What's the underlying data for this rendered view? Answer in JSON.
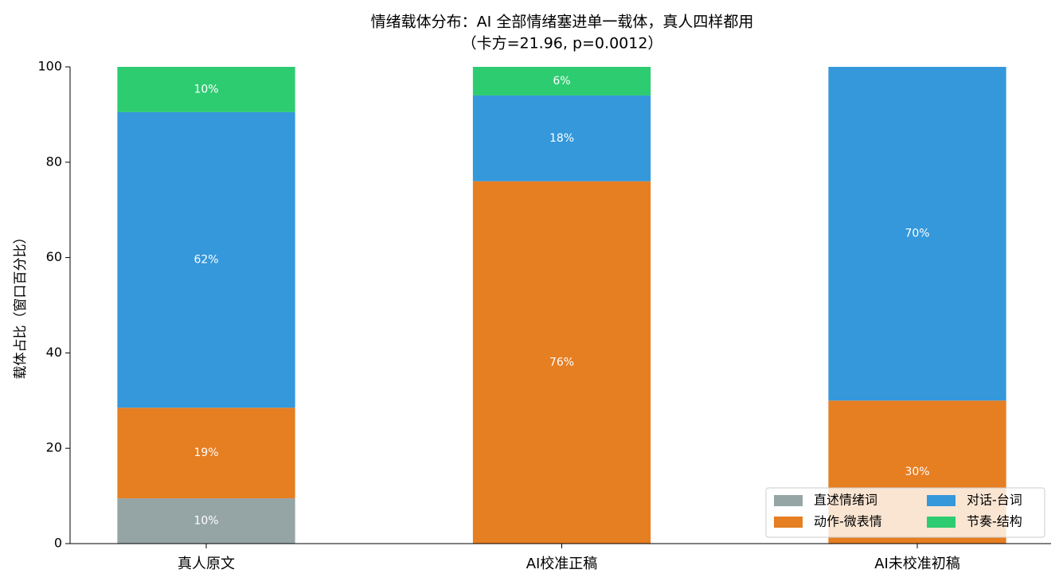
{
  "chart_data": {
    "type": "stacked_bar",
    "title": "情绪载体分布：AI 全部情绪塞进单一载体，真人四样都用",
    "subtitle": "（卡方=21.96, p=0.0012）",
    "y_label": "载体占比（窗口百分比）",
    "categories": [
      "真人原文",
      "AI校准正稿",
      "AI未校准初稿"
    ],
    "series": [
      {
        "name": "直述情绪词",
        "color": "#95a5a6",
        "values": [
          9.5,
          0,
          0
        ],
        "value_labels": [
          "10%",
          null,
          null
        ]
      },
      {
        "name": "动作-微表情",
        "color": "#e67e22",
        "values": [
          19,
          76,
          30
        ],
        "value_labels": [
          "19%",
          "76%",
          "30%"
        ]
      },
      {
        "name": "对话-台词",
        "color": "#3498db",
        "values": [
          62,
          18,
          70
        ],
        "value_labels": [
          "62%",
          "18%",
          "70%"
        ]
      },
      {
        "name": "节奏-结构",
        "color": "#2ecc71",
        "values": [
          9.5,
          6,
          0
        ],
        "value_labels": [
          "10%",
          "6%",
          null
        ]
      }
    ],
    "ylim": [
      0,
      100
    ],
    "yticks": [
      0,
      20,
      40,
      60,
      80,
      100
    ],
    "grid": false,
    "legend": "lower right"
  }
}
